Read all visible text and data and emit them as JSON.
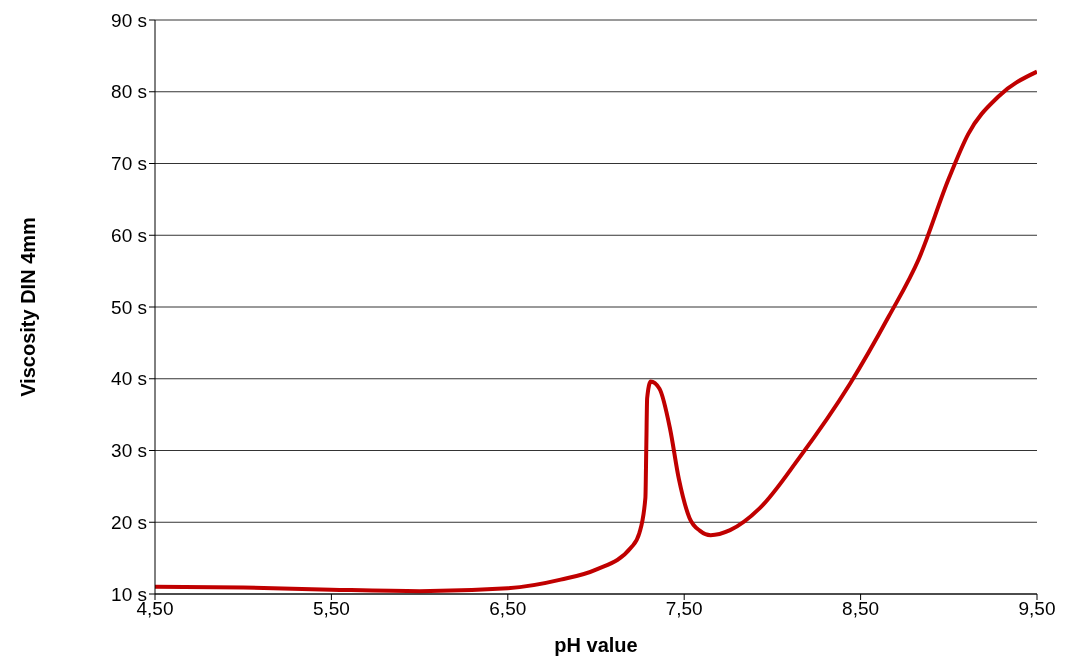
{
  "chart_data": {
    "type": "line",
    "xlabel": "pH value",
    "ylabel": "Viscosity DIN 4mm",
    "x": [
      4.5,
      5.0,
      5.5,
      6.0,
      6.5,
      6.8,
      7.0,
      7.2,
      7.246,
      7.28,
      7.285,
      7.29,
      7.31,
      7.36,
      7.42,
      7.47,
      7.53,
      7.59,
      7.65,
      7.76,
      7.93,
      8.15,
      8.44,
      8.66,
      8.83,
      9.0,
      9.11,
      9.28,
      9.5
    ],
    "series": [
      {
        "color": "#c00000",
        "values": [
          11,
          10.9,
          10.6,
          10.4,
          10.8,
          12,
          13.4,
          16.5,
          18.5,
          23.4,
          30.3,
          37.3,
          39.6,
          38.6,
          33,
          26,
          20.6,
          18.8,
          18.2,
          18.9,
          22,
          28.9,
          39.3,
          48.7,
          56.7,
          67.9,
          74.1,
          79.3,
          82.8
        ]
      }
    ],
    "xlim": [
      4.5,
      9.5
    ],
    "xticks": [
      {
        "value": 4.5,
        "label": "4,50"
      },
      {
        "value": 5.5,
        "label": "5,50"
      },
      {
        "value": 6.5,
        "label": "6,50"
      },
      {
        "value": 7.5,
        "label": "7,50"
      },
      {
        "value": 8.5,
        "label": "8,50"
      },
      {
        "value": 9.5,
        "label": "9,50"
      }
    ],
    "ylim": [
      10,
      90
    ],
    "yticks": [
      {
        "value": 10,
        "label": "10 s"
      },
      {
        "value": 20,
        "label": "20 s"
      },
      {
        "value": 30,
        "label": "30 s"
      },
      {
        "value": 40,
        "label": "40 s"
      },
      {
        "value": 50,
        "label": "50 s"
      },
      {
        "value": 60,
        "label": "60 s"
      },
      {
        "value": 70,
        "label": "70 s"
      },
      {
        "value": 80,
        "label": "80 s"
      },
      {
        "value": 90,
        "label": "90 s"
      }
    ],
    "grid": "y",
    "marker": "none",
    "line_style": "solid",
    "legend": false
  }
}
